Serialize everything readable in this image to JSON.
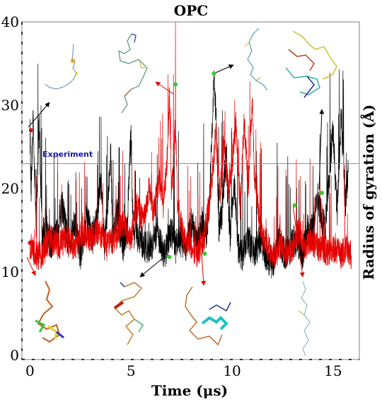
{
  "chart_data": {
    "type": "line",
    "title": "OPC",
    "xlabel": "Time (μs)",
    "ylabel": "Radius of gyration (Å)",
    "xlim": [
      -0.4,
      16.3
    ],
    "ylim": [
      -0.5,
      40
    ],
    "x_ticks": [
      0,
      5,
      10,
      15
    ],
    "y_ticks": [
      0,
      10,
      20,
      30,
      40
    ],
    "grid": false,
    "reference_line": {
      "label": "Experiment",
      "value": 23
    },
    "series": [
      {
        "color": "#000000",
        "anchors": [
          [
            0,
            27
          ],
          [
            0.05,
            19
          ],
          [
            0.15,
            29
          ],
          [
            0.3,
            16
          ],
          [
            0.45,
            28
          ],
          [
            0.6,
            14
          ],
          [
            0.8,
            16
          ],
          [
            1.0,
            13
          ],
          [
            1.3,
            15
          ],
          [
            1.6,
            18
          ],
          [
            1.9,
            13
          ],
          [
            2.2,
            16
          ],
          [
            2.5,
            12
          ],
          [
            2.8,
            17
          ],
          [
            3.1,
            14
          ],
          [
            3.3,
            16
          ],
          [
            3.5,
            21
          ],
          [
            3.7,
            13
          ],
          [
            4.0,
            24
          ],
          [
            4.1,
            14
          ],
          [
            4.3,
            17
          ],
          [
            4.6,
            13
          ],
          [
            4.8,
            15
          ],
          [
            5.0,
            27
          ],
          [
            5.1,
            15
          ],
          [
            5.4,
            14
          ],
          [
            5.7,
            13
          ],
          [
            6.0,
            13
          ],
          [
            6.3,
            15
          ],
          [
            6.6,
            12
          ],
          [
            6.8,
            13
          ],
          [
            7.0,
            15
          ],
          [
            7.2,
            13
          ],
          [
            7.4,
            14
          ],
          [
            7.7,
            13
          ],
          [
            8.0,
            16
          ],
          [
            8.3,
            13
          ],
          [
            8.5,
            16
          ],
          [
            8.7,
            14
          ],
          [
            8.9,
            19
          ],
          [
            9.0,
            27
          ],
          [
            9.1,
            33
          ],
          [
            9.2,
            29
          ],
          [
            9.35,
            15
          ],
          [
            9.5,
            17
          ],
          [
            9.7,
            24
          ],
          [
            9.9,
            14
          ],
          [
            10.1,
            21
          ],
          [
            10.3,
            13
          ],
          [
            10.5,
            12
          ],
          [
            10.8,
            14
          ],
          [
            11.1,
            12
          ],
          [
            11.4,
            14
          ],
          [
            11.7,
            12
          ],
          [
            12.0,
            11
          ],
          [
            12.3,
            14
          ],
          [
            12.6,
            12
          ],
          [
            12.9,
            13
          ],
          [
            13.2,
            14
          ],
          [
            13.5,
            12
          ],
          [
            13.7,
            15
          ],
          [
            14.0,
            15
          ],
          [
            14.2,
            19
          ],
          [
            14.4,
            17
          ],
          [
            14.6,
            15
          ],
          [
            14.8,
            21
          ],
          [
            15.0,
            27
          ],
          [
            15.2,
            17
          ],
          [
            15.4,
            29
          ],
          [
            15.6,
            18
          ],
          [
            15.75,
            22
          ]
        ]
      },
      {
        "color": "#e60000",
        "anchors": [
          [
            0,
            13
          ],
          [
            0.3,
            12
          ],
          [
            0.6,
            12
          ],
          [
            1.0,
            14
          ],
          [
            1.4,
            13
          ],
          [
            1.8,
            14
          ],
          [
            2.2,
            13
          ],
          [
            2.6,
            15
          ],
          [
            3.0,
            14
          ],
          [
            3.4,
            15
          ],
          [
            3.8,
            13
          ],
          [
            4.2,
            14
          ],
          [
            4.6,
            16
          ],
          [
            5.0,
            14
          ],
          [
            5.3,
            18
          ],
          [
            5.6,
            16
          ],
          [
            5.9,
            20
          ],
          [
            6.1,
            17
          ],
          [
            6.4,
            21
          ],
          [
            6.6,
            18
          ],
          [
            6.8,
            24
          ],
          [
            6.9,
            31
          ],
          [
            7.0,
            19
          ],
          [
            7.2,
            28
          ],
          [
            7.3,
            18
          ],
          [
            7.6,
            14
          ],
          [
            8.0,
            13
          ],
          [
            8.3,
            12
          ],
          [
            8.6,
            14
          ],
          [
            8.8,
            17
          ],
          [
            9.0,
            21
          ],
          [
            9.2,
            27
          ],
          [
            9.4,
            19
          ],
          [
            9.6,
            25
          ],
          [
            9.8,
            20
          ],
          [
            10.0,
            23
          ],
          [
            10.2,
            28
          ],
          [
            10.4,
            18
          ],
          [
            10.6,
            28
          ],
          [
            10.8,
            20
          ],
          [
            11.0,
            31
          ],
          [
            11.1,
            22
          ],
          [
            11.3,
            17
          ],
          [
            11.5,
            14
          ],
          [
            11.8,
            13
          ],
          [
            12.1,
            12
          ],
          [
            12.4,
            13
          ],
          [
            12.7,
            12
          ],
          [
            13.0,
            13
          ],
          [
            13.3,
            15
          ],
          [
            13.6,
            13
          ],
          [
            13.9,
            14
          ],
          [
            14.2,
            13
          ],
          [
            14.5,
            13
          ],
          [
            14.8,
            12
          ],
          [
            15.1,
            13
          ],
          [
            15.4,
            12
          ],
          [
            15.7,
            13
          ],
          [
            15.9,
            12
          ]
        ]
      }
    ],
    "structure_markers": [
      {
        "x": 0.05,
        "y": 27,
        "color": "#e60000"
      },
      {
        "x": 7.2,
        "y": 32.5,
        "color": "#33cc33"
      },
      {
        "x": 9.1,
        "y": 33.8,
        "color": "#33cc33"
      },
      {
        "x": 14.45,
        "y": 19.5,
        "color": "#33cc33"
      },
      {
        "x": 13.1,
        "y": 18,
        "color": "#33cc33"
      },
      {
        "x": 6.9,
        "y": 11.8,
        "color": "#33cc33"
      },
      {
        "x": 8.65,
        "y": 12.2,
        "color": "#33cc33"
      },
      {
        "x": 0.0,
        "y": 13.5,
        "color": "#e60000"
      }
    ]
  },
  "colors": {
    "reference_line": "#888888",
    "reference_label": "#1a1aa6",
    "marker_red": "#e60000",
    "marker_green": "#33cc33"
  }
}
